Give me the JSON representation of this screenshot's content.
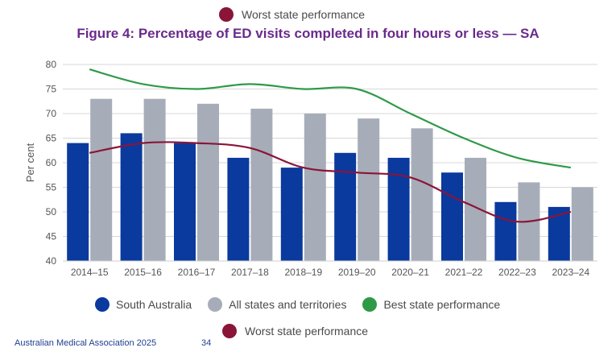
{
  "legend_top": {
    "label": "Worst state performance"
  },
  "chart_data": {
    "type": "bar",
    "title": "Figure 4: Percentage of ED visits completed in four hours or less — SA",
    "ylabel": "Per cent",
    "xlabel": "",
    "ylim": [
      40,
      80
    ],
    "yticks": [
      "40",
      "45",
      "50",
      "55",
      "60",
      "65",
      "70",
      "75",
      "80"
    ],
    "grid": true,
    "categories": [
      "2014–15",
      "2015–16",
      "2016–17",
      "2017–18",
      "2018–19",
      "2019–20",
      "2020–21",
      "2021–22",
      "2022–23",
      "2023–24"
    ],
    "series": [
      {
        "name": "South Australia",
        "type": "bar",
        "color": "#0a3a9e",
        "values": [
          64,
          66,
          64,
          61,
          59,
          62,
          61,
          58,
          52,
          51
        ]
      },
      {
        "name": "All states and territories",
        "type": "bar",
        "color": "#a7adb8",
        "values": [
          73,
          73,
          72,
          71,
          70,
          69,
          67,
          61,
          56,
          55
        ]
      },
      {
        "name": "Best state performance",
        "type": "line",
        "color": "#2e9a48",
        "values": [
          79,
          76,
          75,
          76,
          75,
          75,
          70,
          65,
          61,
          59
        ]
      },
      {
        "name": "Worst state performance",
        "type": "line",
        "color": "#8a1538",
        "values": [
          62,
          64,
          64,
          63,
          59,
          58,
          57,
          52,
          48,
          50
        ]
      }
    ],
    "legend_position": "bottom"
  },
  "footer": {
    "text": "Australian Medical Association 2025",
    "page": "34"
  }
}
